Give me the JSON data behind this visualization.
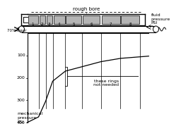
{
  "fig_bg": "#ffffff",
  "line_color": "#000000",
  "gray_color": "#aaaaaa",
  "rough_bore_label": "rough bore",
  "fluid_pressure_label": "fluid\npressure\nPSI",
  "wear_label": "70% wear",
  "these_rings_label": "these rings\nnot needed",
  "mech_pressure_label": "mechanical\npressure\nPSI",
  "ring_numbers": [
    "1",
    "2",
    "3",
    "4",
    "5",
    "6",
    "7",
    "8"
  ],
  "y_ticks": [
    100,
    200,
    300,
    400
  ],
  "curve_pressures": [
    400,
    375,
    305,
    215,
    170,
    150,
    128,
    113,
    106,
    103
  ],
  "gray_ring_color": "#b4b4b4"
}
